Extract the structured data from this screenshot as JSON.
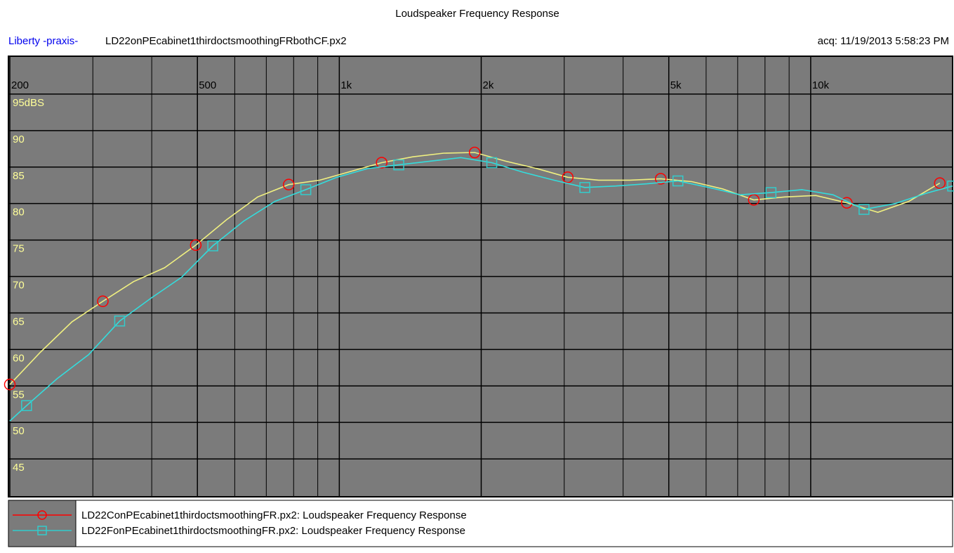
{
  "chart_data": {
    "type": "line",
    "title": "Loudspeaker Frequency Response",
    "brand": "Liberty -praxis-",
    "subtitle": "LD22onPEcabinet1thirdoctsmoothingFRbothCF.px2",
    "acquired": "acq: 11/19/2013 5:58:23 PM",
    "xscale": "log",
    "xlim": [
      200,
      20000
    ],
    "ylim": [
      40,
      100
    ],
    "xticks": [
      200,
      500,
      {
        "value": 1000,
        "label": "1k"
      },
      {
        "value": 2000,
        "label": "2k"
      },
      {
        "value": 5000,
        "label": "5k"
      },
      {
        "value": 10000,
        "label": "10k"
      }
    ],
    "xgrid_minor": [
      300,
      400,
      600,
      700,
      800,
      900,
      3000,
      4000,
      6000,
      7000,
      8000,
      9000
    ],
    "yticks": [
      45,
      50,
      55,
      60,
      65,
      70,
      75,
      80,
      85,
      90,
      {
        "value": 95,
        "label": "95dBS"
      }
    ],
    "grid": true,
    "series": [
      {
        "name": "LD22ConPEcabinet1thirdoctsmoothingFR.px2:  Loudspeaker Frequency Response",
        "color": "#ff0000",
        "line_color": "#f0f080",
        "marker": "circle",
        "x": [
          200,
          232,
          271,
          315,
          366,
          426,
          496,
          577,
          671,
          781,
          909,
          1057,
          1230,
          1431,
          1665,
          1937,
          2254,
          2623,
          3052,
          3551,
          4132,
          4807,
          5594,
          6508,
          7573,
          8811,
          10252,
          11929,
          13880,
          16150,
          18790
        ],
        "values": [
          55.2,
          59.6,
          63.8,
          66.6,
          69.3,
          71.2,
          74.3,
          77.8,
          80.9,
          82.6,
          83.2,
          84.4,
          85.6,
          86.4,
          86.9,
          87.0,
          85.8,
          84.8,
          83.6,
          83.2,
          83.2,
          83.4,
          83.0,
          82.0,
          80.5,
          80.9,
          81.1,
          80.1,
          78.8,
          80.3,
          82.8
        ]
      },
      {
        "name": "LD22FonPEcabinet1thirdoctsmoothingFR.px2:  Loudspeaker Frequency Response",
        "color": "#33cccc",
        "line_color": "#33dddd",
        "marker": "square",
        "x": [
          200,
          217,
          252,
          294,
          342,
          398,
          463,
          539,
          627,
          730,
          849,
          988,
          1149,
          1337,
          1556,
          1810,
          2106,
          2451,
          2852,
          3318,
          3861,
          4493,
          5228,
          6083,
          7078,
          8236,
          9583,
          11150,
          12975,
          15097,
          17567,
          20000
        ],
        "values": [
          50.2,
          52.3,
          56.0,
          59.3,
          63.9,
          67.0,
          69.9,
          74.2,
          77.6,
          80.3,
          81.9,
          83.6,
          84.8,
          85.3,
          85.8,
          86.3,
          85.6,
          84.3,
          83.2,
          82.2,
          82.4,
          82.7,
          83.1,
          82.2,
          81.2,
          81.5,
          81.9,
          81.2,
          79.2,
          80.0,
          81.4,
          82.4
        ]
      }
    ]
  }
}
